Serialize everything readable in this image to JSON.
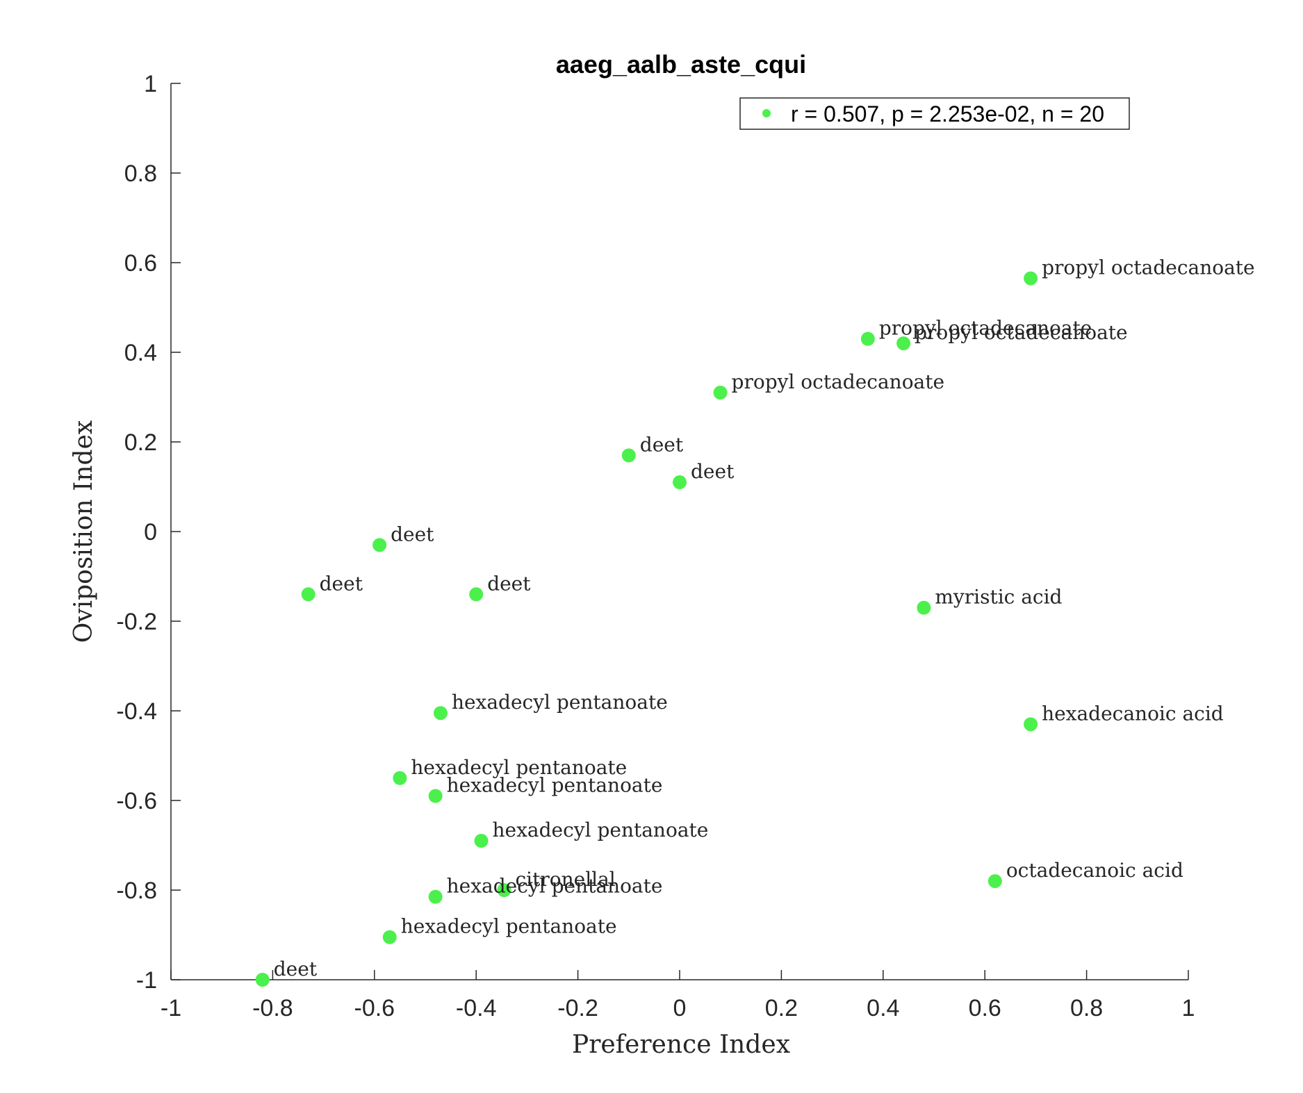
{
  "chart_data": {
    "type": "scatter",
    "title": "aaeg_aalb_aste_cqui",
    "xlabel": "Preference Index",
    "ylabel": "Oviposition Index",
    "xlim": [
      -1,
      1
    ],
    "ylim": [
      -1,
      1
    ],
    "xticks": [
      "-1",
      "-0.8",
      "-0.6",
      "-0.4",
      "-0.2",
      "0",
      "0.2",
      "0.4",
      "0.6",
      "0.8",
      "1"
    ],
    "yticks": [
      "-1",
      "-0.8",
      "-0.6",
      "-0.4",
      "-0.2",
      "0",
      "0.2",
      "0.4",
      "0.6",
      "0.8",
      "1"
    ],
    "grid": false,
    "legend_position": "top-right",
    "series": [
      {
        "name": "r = 0.507, p = 2.253e-02, n = 20",
        "color": "#4cf04c",
        "points": [
          {
            "x": 0.69,
            "y": 0.565,
            "label": "propyl octadecanoate"
          },
          {
            "x": 0.37,
            "y": 0.43,
            "label": "propyl octadecanoate"
          },
          {
            "x": 0.44,
            "y": 0.42,
            "label": "propyl octadecanoate"
          },
          {
            "x": 0.08,
            "y": 0.31,
            "label": "propyl octadecanoate"
          },
          {
            "x": -0.1,
            "y": 0.17,
            "label": "deet"
          },
          {
            "x": 0.0,
            "y": 0.11,
            "label": "deet"
          },
          {
            "x": -0.59,
            "y": -0.03,
            "label": "deet"
          },
          {
            "x": -0.73,
            "y": -0.14,
            "label": "deet"
          },
          {
            "x": -0.4,
            "y": -0.14,
            "label": "deet"
          },
          {
            "x": 0.48,
            "y": -0.17,
            "label": "myristic acid"
          },
          {
            "x": -0.47,
            "y": -0.405,
            "label": "hexadecyl pentanoate"
          },
          {
            "x": 0.69,
            "y": -0.43,
            "label": "hexadecanoic acid"
          },
          {
            "x": -0.55,
            "y": -0.55,
            "label": "hexadecyl pentanoate"
          },
          {
            "x": -0.48,
            "y": -0.59,
            "label": "hexadecyl pentanoate"
          },
          {
            "x": -0.39,
            "y": -0.69,
            "label": "hexadecyl pentanoate"
          },
          {
            "x": 0.62,
            "y": -0.78,
            "label": "octadecanoic acid"
          },
          {
            "x": -0.345,
            "y": -0.8,
            "label": "citronellal"
          },
          {
            "x": -0.48,
            "y": -0.815,
            "label": "hexadecyl pentanoate"
          },
          {
            "x": -0.57,
            "y": -0.905,
            "label": "hexadecyl pentanoate"
          },
          {
            "x": -0.82,
            "y": -1.0,
            "label": "deet"
          }
        ]
      }
    ]
  }
}
